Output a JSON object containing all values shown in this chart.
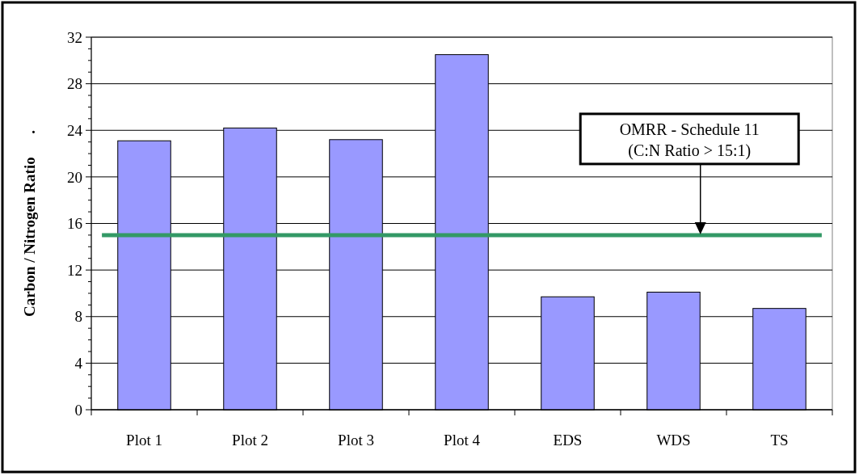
{
  "chart_data": {
    "type": "bar",
    "ylabel": "Carbon / Nitrogen Ratio      .",
    "categories": [
      "Plot 1",
      "Plot 2",
      "Plot 3",
      "Plot 4",
      "EDS",
      "WDS",
      "TS"
    ],
    "values": [
      23.1,
      24.2,
      23.2,
      30.5,
      9.7,
      10.1,
      8.7
    ],
    "color": "#9999ff",
    "ylim": [
      0,
      32
    ],
    "yticks": [
      0,
      {
        "value": 1,
        "label": null
      },
      {
        "value": 2,
        "label": null
      },
      {
        "value": 3,
        "label": null
      },
      4,
      {
        "value": 5,
        "label": null
      },
      {
        "value": 6,
        "label": null
      },
      {
        "value": 7,
        "label": null
      },
      8,
      {
        "value": 9,
        "label": null
      },
      {
        "value": 10,
        "label": null
      },
      {
        "value": 11,
        "label": null
      },
      12,
      {
        "value": 13,
        "label": null
      },
      {
        "value": 14,
        "label": null
      },
      {
        "value": 15,
        "label": null
      },
      16,
      {
        "value": 17,
        "label": null
      },
      {
        "value": 18,
        "label": null
      },
      {
        "value": 19,
        "label": null
      },
      20,
      {
        "value": 21,
        "label": null
      },
      {
        "value": 22,
        "label": null
      },
      {
        "value": 23,
        "label": null
      },
      24,
      {
        "value": 25,
        "label": null
      },
      {
        "value": 26,
        "label": null
      },
      {
        "value": 27,
        "label": null
      },
      28,
      {
        "value": 29,
        "label": null
      },
      {
        "value": 30,
        "label": null
      },
      {
        "value": 31,
        "label": null
      },
      32
    ],
    "grid": "y",
    "ref_lines": [
      {
        "axis": "y",
        "value": 15,
        "color": "#339966"
      }
    ],
    "annotations": [
      "OMRR - Schedule 11\n(C:N Ratio > 15:1)"
    ]
  }
}
